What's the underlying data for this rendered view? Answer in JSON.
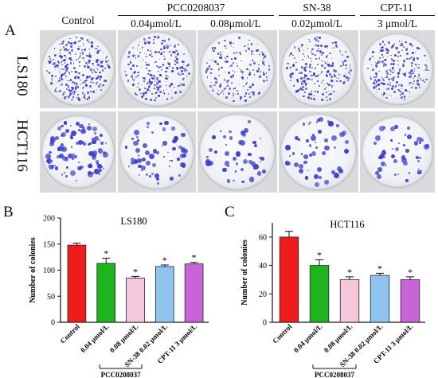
{
  "figure": {
    "panel_labels": [
      "A",
      "B",
      "C"
    ],
    "drug_groups": [
      {
        "name": "PCC0208037"
      },
      {
        "name": "SN-38"
      },
      {
        "name": "CPT-11"
      }
    ],
    "column_headers": [
      "Control",
      "0.04μmol/L",
      "0.08μmol/L",
      "0.02μmol/L",
      "3 μmol/L"
    ],
    "row_labels": [
      "LS180",
      "HCT116"
    ],
    "plates": [
      [
        {
          "colonies": 150,
          "size": "small"
        },
        {
          "colonies": 115,
          "size": "small"
        },
        {
          "colonies": 85,
          "size": "small"
        },
        {
          "colonies": 107,
          "size": "small"
        },
        {
          "colonies": 112,
          "size": "small"
        }
      ],
      [
        {
          "colonies": 60,
          "size": "large"
        },
        {
          "colonies": 40,
          "size": "large"
        },
        {
          "colonies": 30,
          "size": "large"
        },
        {
          "colonies": 33,
          "size": "large"
        },
        {
          "colonies": 30,
          "size": "large"
        }
      ]
    ]
  },
  "chart_data": [
    {
      "type": "bar",
      "panel": "B",
      "title": "LS180",
      "ylabel": "Number of colonies",
      "ylim": [
        0,
        200
      ],
      "yticks": [
        0,
        50,
        100,
        150,
        200
      ],
      "categories": [
        "Control",
        "0.04 μmol/L",
        "0.08 μmol/L",
        "SN-38 0.02 μmol/L",
        "CPT-11 3 μmol/L"
      ],
      "values": [
        148,
        113,
        85,
        107,
        112
      ],
      "errors": [
        4,
        10,
        3,
        3,
        3
      ],
      "significance": [
        "",
        "*",
        "*",
        "*",
        "*"
      ],
      "colors": [
        "#ee1c1c",
        "#1db41d",
        "#f6c6da",
        "#8fc4f0",
        "#c963d8"
      ],
      "group_bracket_label": "PCC0208037"
    },
    {
      "type": "bar",
      "panel": "C",
      "title": "HCT116",
      "ylabel": "Number of colonies",
      "ylim": [
        0,
        70
      ],
      "yticks": [
        0,
        20,
        40,
        60
      ],
      "categories": [
        "Control",
        "0.04 μmol/L",
        "0.08 μmol/L",
        "SN-38 0.02 μmol/L",
        "CPT-11 3 μmol/L"
      ],
      "values": [
        60,
        40,
        30,
        33,
        30
      ],
      "errors": [
        4,
        4,
        2,
        1.5,
        2
      ],
      "significance": [
        "",
        "*",
        "*",
        "*",
        "*"
      ],
      "colors": [
        "#ee1c1c",
        "#1db41d",
        "#f6c6da",
        "#8fc4f0",
        "#c963d8"
      ],
      "group_bracket_label": "PCC0208037"
    }
  ]
}
